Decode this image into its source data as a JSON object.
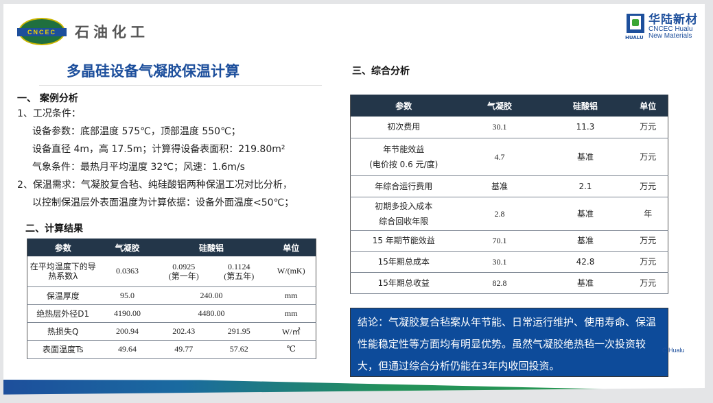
{
  "header": {
    "left_logo_text": "CNCEC",
    "left_logo_name": "石油化工",
    "right_logo_cn": "华陆新材",
    "right_logo_en1": "CNCEC Hualu",
    "right_logo_en2": "New Materials",
    "right_logo_mark": "HUALU"
  },
  "title": "多晶硅设备气凝胶保温计算",
  "section1": {
    "heading": "一、 案例分析",
    "lines": [
      "1、工况条件：",
      "设备参数：底部温度 575℃，顶部温度 550℃；",
      "设备直径 4m，高 17.5m；计算得设备表面积：219.80m²",
      "气象条件：最热月平均温度 32℃；风速：1.6m/s",
      "2、保温需求：气凝胶复合毡、纯硅酸铝两种保温工况对比分析，",
      "以控制保温层外表面温度为计算依据：设备外面温度<50℃；"
    ]
  },
  "section2": {
    "heading": "二、计算结果",
    "headers": [
      "参数",
      "气凝胶",
      "硅酸铝",
      "单位"
    ],
    "rows": [
      {
        "param": "在平均温度下的导热系数λ",
        "aerogel": "0.0363",
        "al1": "0.0925\n(第一年)",
        "al2": "0.1124\n(第五年)",
        "unit": "W/(mK)"
      },
      {
        "param": "保温厚度",
        "aerogel": "95.0",
        "al": "240.00",
        "unit": "mm"
      },
      {
        "param": "绝热层外径D1",
        "aerogel": "4190.00",
        "al": "4480.00",
        "unit": "mm"
      },
      {
        "param": "热损失Q",
        "aerogel": "200.94",
        "al1": "202.43",
        "al2": "291.95",
        "unit": "W/㎡"
      },
      {
        "param": "表面温度Ts",
        "aerogel": "49.64",
        "al1": "49.77",
        "al2": "57.62",
        "unit": "℃"
      }
    ]
  },
  "section3": {
    "heading": "三、综合分析",
    "headers": [
      "参数",
      "气凝胶",
      "硅酸铝",
      "单位"
    ],
    "rows": [
      {
        "param": "初次费用",
        "aerogel": "30.1",
        "al": "11.3",
        "unit": "万元"
      },
      {
        "param": "年节能效益\n(电价按 0.6 元/度)",
        "aerogel": "4.7",
        "al": "基准",
        "unit": "万元"
      },
      {
        "param": "年综合运行费用",
        "aerogel": "基准",
        "al": "2.1",
        "unit": "万元"
      },
      {
        "param": "初期多投入成本\n综合回收年限",
        "aerogel": "2.8",
        "al": "基准",
        "unit": "年"
      },
      {
        "param": "15 年期节能效益",
        "aerogel": "70.1",
        "al": "基准",
        "unit": "万元"
      },
      {
        "param": "15年期总成本",
        "aerogel": "30.1",
        "al": "42.8",
        "unit": "万元"
      },
      {
        "param": "15年期总收益",
        "aerogel": "82.8",
        "al": "基准",
        "unit": "万元"
      }
    ]
  },
  "conclusion": "结论：气凝胶复合毡案从年节能、日常运行维护、使用寿命、保温性能稳定性等方面均有明显优势。虽然气凝胶绝热毡一次投资较大，但通过综合分析仍能在3年内收回投资。",
  "watermark": "C Hualu",
  "colors": {
    "brand_blue": "#1d4f9c",
    "table_header": "#233649",
    "conclusion_bg": "#0d4b9a",
    "green": "#2a9b4c"
  }
}
